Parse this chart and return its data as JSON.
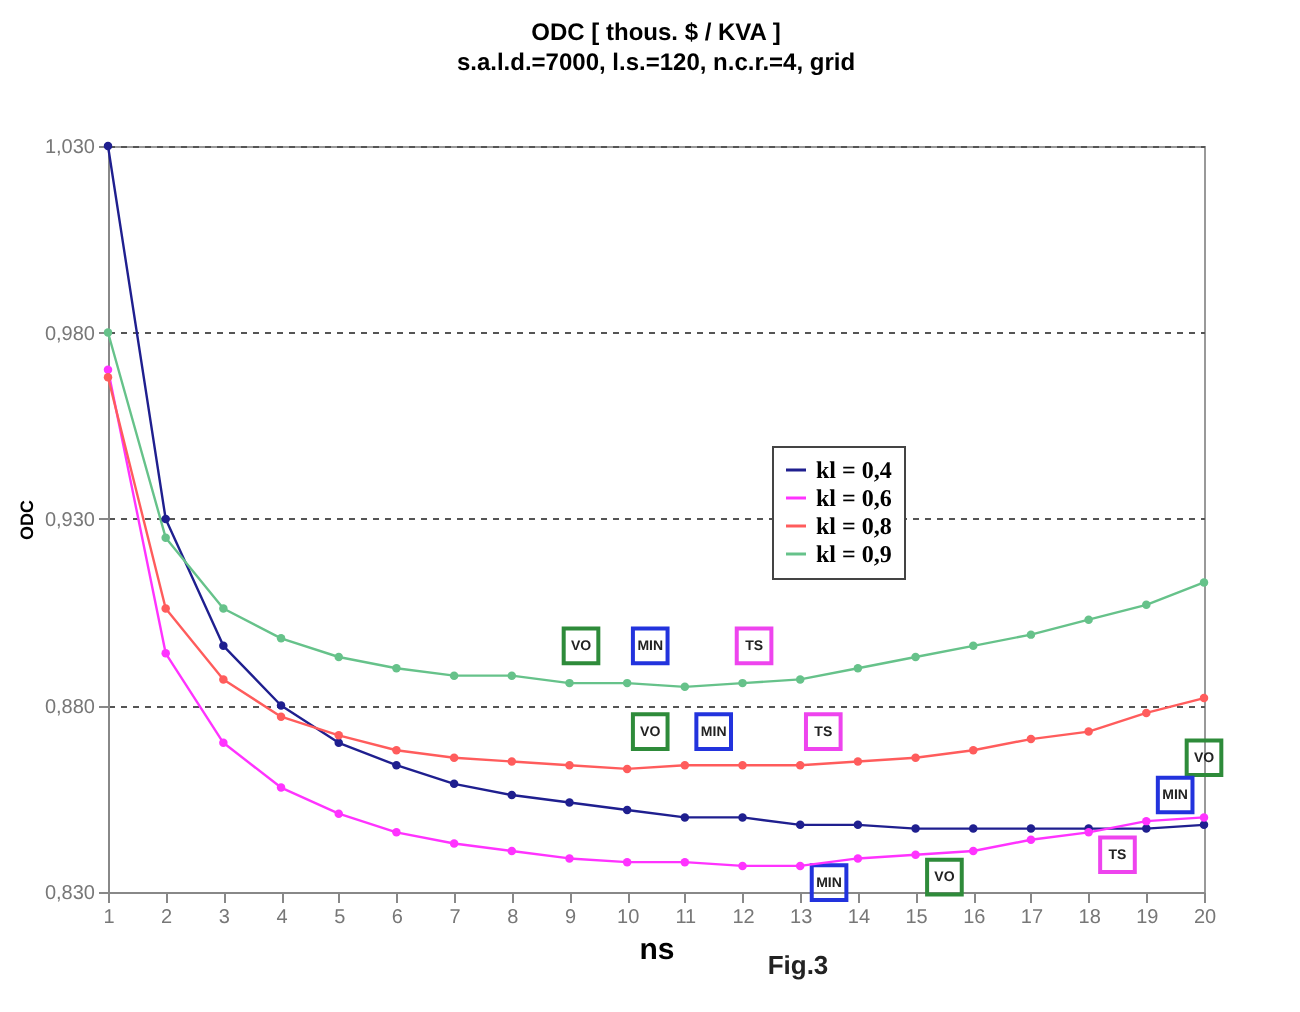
{
  "chart_data": {
    "type": "line",
    "title": "ODC [ thous. $ / KVA ]",
    "subtitle": "s.a.l.d.=7000, l.s.=120, n.c.r.=4,  grid",
    "xlabel": "ns",
    "ylabel": "ODC",
    "x": [
      1,
      2,
      3,
      4,
      5,
      6,
      7,
      8,
      9,
      10,
      11,
      12,
      13,
      14,
      15,
      16,
      17,
      18,
      19,
      20
    ],
    "series": [
      {
        "name": "kl = 0,4",
        "color": "#1f1f8f",
        "values": [
          1.03,
          0.93,
          0.896,
          0.88,
          0.87,
          0.864,
          0.859,
          0.856,
          0.854,
          0.852,
          0.85,
          0.85,
          0.848,
          0.848,
          0.847,
          0.847,
          0.847,
          0.847,
          0.847,
          0.848
        ]
      },
      {
        "name": "kl = 0,6",
        "color": "#ff33ff",
        "values": [
          0.97,
          0.894,
          0.87,
          0.858,
          0.851,
          0.846,
          0.843,
          0.841,
          0.839,
          0.838,
          0.838,
          0.837,
          0.837,
          0.839,
          0.84,
          0.841,
          0.844,
          0.846,
          0.849,
          0.85
        ]
      },
      {
        "name": "kl = 0,8",
        "color": "#ff5c5c",
        "values": [
          0.968,
          0.906,
          0.887,
          0.877,
          0.872,
          0.868,
          0.866,
          0.865,
          0.864,
          0.863,
          0.864,
          0.864,
          0.864,
          0.865,
          0.866,
          0.868,
          0.871,
          0.873,
          0.878,
          0.882
        ]
      },
      {
        "name": "kl = 0,9",
        "color": "#66c28a",
        "values": [
          0.98,
          0.925,
          0.906,
          0.898,
          0.893,
          0.89,
          0.888,
          0.888,
          0.886,
          0.886,
          0.885,
          0.886,
          0.887,
          0.89,
          0.893,
          0.896,
          0.899,
          0.903,
          0.907,
          0.913
        ]
      }
    ],
    "xlim": [
      1,
      20
    ],
    "xticks": [
      1,
      2,
      3,
      4,
      5,
      6,
      7,
      8,
      9,
      10,
      11,
      12,
      13,
      14,
      15,
      16,
      17,
      18,
      19,
      20
    ],
    "ylim": [
      0.83,
      1.03
    ],
    "yticks": [
      {
        "value": 0.83,
        "label": "0,830"
      },
      {
        "value": 0.88,
        "label": "0,880"
      },
      {
        "value": 0.93,
        "label": "0,930"
      },
      {
        "value": 0.98,
        "label": "0,980"
      },
      {
        "value": 1.03,
        "label": "1,030"
      }
    ],
    "grid": "y",
    "legend": "top right",
    "marker": "circle",
    "line_style": "solid",
    "annotations": [
      {
        "text": "VO",
        "x": 9.2,
        "y": 0.896
      },
      {
        "text": "MIN",
        "x": 10.4,
        "y": 0.896
      },
      {
        "text": "TS",
        "x": 12.2,
        "y": 0.896
      },
      {
        "text": "VO",
        "x": 10.4,
        "y": 0.873
      },
      {
        "text": "MIN",
        "x": 11.5,
        "y": 0.873
      },
      {
        "text": "TS",
        "x": 13.4,
        "y": 0.873
      },
      {
        "text": "VO",
        "x": 15.5,
        "y": 0.834
      },
      {
        "text": "MIN",
        "x": 13.5,
        "y": 0.8325
      },
      {
        "text": "TS",
        "x": 18.5,
        "y": 0.84
      },
      {
        "text": "VO",
        "x": 20,
        "y": 0.866
      },
      {
        "text": "MIN",
        "x": 19.5,
        "y": 0.856
      },
      "Fig.3"
    ]
  }
}
